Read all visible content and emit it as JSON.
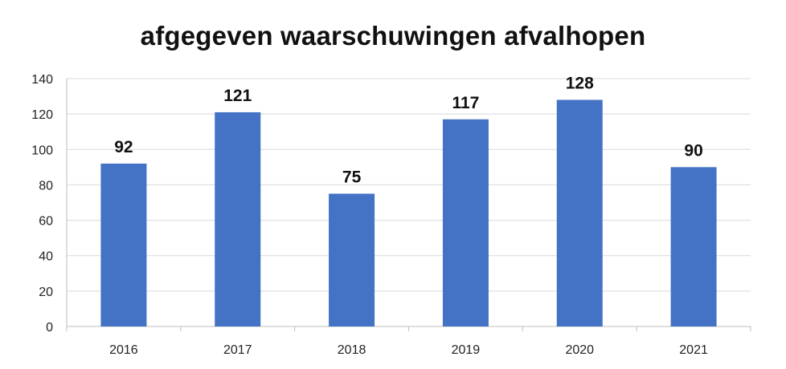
{
  "chart_data": {
    "type": "bar",
    "title": "afgegeven waarschuwingen afvalhopen",
    "categories": [
      "2016",
      "2017",
      "2018",
      "2019",
      "2020",
      "2021"
    ],
    "series": [
      {
        "values": [
          92,
          121,
          75,
          117,
          128,
          90
        ],
        "color": "#4472C4"
      }
    ],
    "data_labels": [
      "92",
      "121",
      "75",
      "117",
      "128",
      "90"
    ],
    "ylim": [
      0,
      140
    ],
    "yticks": [
      "0",
      "20",
      "40",
      "60",
      "80",
      "100",
      "120",
      "140"
    ],
    "xlabel": "",
    "ylabel": "",
    "grid": true,
    "legend": "none"
  }
}
